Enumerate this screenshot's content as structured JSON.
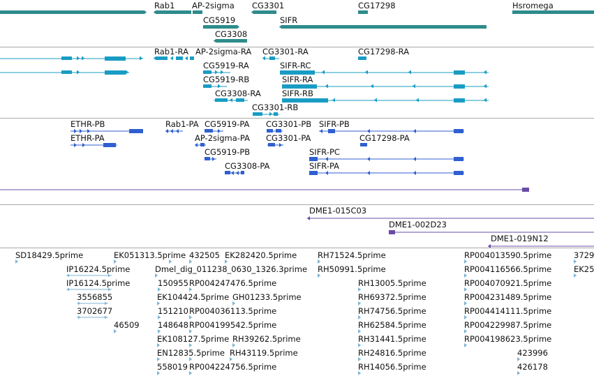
{
  "colors": {
    "gene": "#2e8b8b",
    "transcript_rna": "#199cc4",
    "transcript_pa": "#2f5fd0",
    "contig": "#6a4ca8",
    "est": "#7fb6d6"
  },
  "tracks": {
    "genes": [
      {
        "label": "Rab1"
      },
      {
        "label": "AP-2sigma"
      },
      {
        "label": "CG3301"
      },
      {
        "label": "CG17298"
      },
      {
        "label": "Hsromega"
      },
      {
        "label": "CG5919"
      },
      {
        "label": "SIFR"
      },
      {
        "label": "CG3308"
      }
    ],
    "transcripts_rna": [
      {
        "label": "Rab1-RA"
      },
      {
        "label": "AP-2sigma-RA"
      },
      {
        "label": "CG3301-RA"
      },
      {
        "label": "CG17298-RA"
      },
      {
        "label": "CG5919-RA"
      },
      {
        "label": "SIFR-RC"
      },
      {
        "label": "CG5919-RB"
      },
      {
        "label": "SIFR-RA"
      },
      {
        "label": "CG3308-RA"
      },
      {
        "label": "SIFR-RB"
      },
      {
        "label": "CG3301-RB"
      }
    ],
    "transcripts_pa": [
      {
        "label": "ETHR-PB"
      },
      {
        "label": "Rab1-PA"
      },
      {
        "label": "CG5919-PA"
      },
      {
        "label": "CG3301-PB"
      },
      {
        "label": "SIFR-PB"
      },
      {
        "label": "ETHR-PA"
      },
      {
        "label": "AP-2sigma-PA"
      },
      {
        "label": "CG3301-PA"
      },
      {
        "label": "CG17298-PA"
      },
      {
        "label": "CG5919-PB"
      },
      {
        "label": "SIFR-PC"
      },
      {
        "label": "CG3308-PA"
      },
      {
        "label": "SIFR-PA"
      }
    ],
    "clones": [
      {
        "label": "DME1-015C03"
      },
      {
        "label": "DME1-002D23"
      },
      {
        "label": "DME1-019N12"
      }
    ],
    "ests": [
      {
        "label": "SD18429.5prime"
      },
      {
        "label": "EK051313.5prime"
      },
      {
        "label": "432505"
      },
      {
        "label": "EK282420.5prime"
      },
      {
        "label": "RH71524.5prime"
      },
      {
        "label": "RP004013590.5prime"
      },
      {
        "label": "3729"
      },
      {
        "label": "IP16224.5prime"
      },
      {
        "label": "Dmel_dig_011238_0630_1326.3prime"
      },
      {
        "label": "RH50991.5prime"
      },
      {
        "label": "RP004116566.5prime"
      },
      {
        "label": "EK25"
      },
      {
        "label": "IP16124.5prime"
      },
      {
        "label": "150955"
      },
      {
        "label": "RP004247476.5prime"
      },
      {
        "label": "RH13005.5prime"
      },
      {
        "label": "RP004070921.5prime"
      },
      {
        "label": "3556855"
      },
      {
        "label": "EK104424.5prime"
      },
      {
        "label": "GH01233.5prime"
      },
      {
        "label": "RH69372.5prime"
      },
      {
        "label": "RP004231489.5prime"
      },
      {
        "label": "3702677"
      },
      {
        "label": "151210"
      },
      {
        "label": "RP004036113.5prime"
      },
      {
        "label": "RH74756.5prime"
      },
      {
        "label": "RP004414111.5prime"
      },
      {
        "label": "46509"
      },
      {
        "label": "148648"
      },
      {
        "label": "RP004199542.5prime"
      },
      {
        "label": "RH62584.5prime"
      },
      {
        "label": "RP004229987.5prime"
      },
      {
        "label": "EK108127.5prime"
      },
      {
        "label": "RH39262.5prime"
      },
      {
        "label": "RH31441.5prime"
      },
      {
        "label": "RP004198623.5prime"
      },
      {
        "label": "EN12835.5prime"
      },
      {
        "label": "RH43119.5prime"
      },
      {
        "label": "RH24816.5prime"
      },
      {
        "label": "423996"
      },
      {
        "label": "558019"
      },
      {
        "label": "RP004224756.5prime"
      },
      {
        "label": "RH14056.5prime"
      },
      {
        "label": "426178"
      }
    ]
  }
}
